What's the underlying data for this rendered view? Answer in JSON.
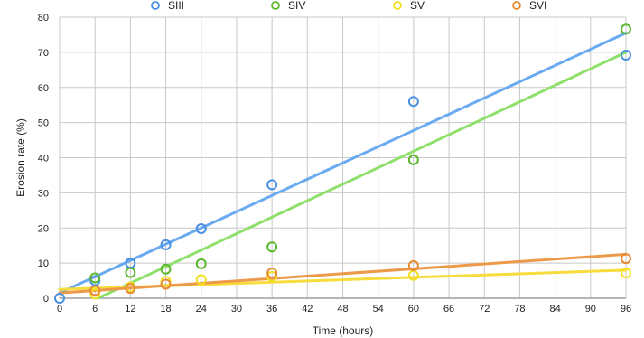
{
  "chart_data": {
    "type": "scatter",
    "xlabel": "Time (hours)",
    "ylabel": "Erosion rate (%)",
    "xlim": [
      0,
      96
    ],
    "ylim": [
      0,
      80
    ],
    "xticks": [
      0,
      6,
      12,
      18,
      24,
      30,
      36,
      42,
      48,
      54,
      60,
      66,
      72,
      78,
      84,
      90,
      96
    ],
    "yticks": [
      0,
      10,
      20,
      30,
      40,
      50,
      60,
      70,
      80
    ],
    "grid": true,
    "legend_position": "top",
    "series": [
      {
        "name": "SIII",
        "color": "#4a90e2",
        "line_color": "#6aaaf0",
        "x": [
          0,
          6,
          12,
          18,
          24,
          36,
          60,
          96
        ],
        "y": [
          0,
          5,
          10,
          15.2,
          19.8,
          32.3,
          56,
          69.2
        ],
        "trendline": [
          [
            0,
            1.5
          ],
          [
            96,
            75.5
          ]
        ]
      },
      {
        "name": "SIV",
        "color": "#5cb82e",
        "line_color": "#8ee06a",
        "x": [
          6,
          12,
          18,
          24,
          36,
          60,
          96
        ],
        "y": [
          5.8,
          7.3,
          8.3,
          9.8,
          14.6,
          39.4,
          76.6
        ],
        "trendline": [
          [
            6.5,
            0
          ],
          [
            96,
            70
          ]
        ]
      },
      {
        "name": "SV",
        "color": "#f2e01e",
        "line_color": "#f6dc3c",
        "x": [
          6,
          12,
          18,
          24,
          36,
          60,
          96
        ],
        "y": [
          1.2,
          3.2,
          4.8,
          5.3,
          6.2,
          6.5,
          7.2
        ],
        "trendline": [
          [
            0,
            2.5
          ],
          [
            96,
            8
          ]
        ]
      },
      {
        "name": "SVI",
        "color": "#e88a35",
        "line_color": "#ec9a4a",
        "x": [
          6,
          12,
          18,
          36,
          60,
          96
        ],
        "y": [
          2.2,
          2.8,
          4,
          7.2,
          9.3,
          11.3
        ],
        "trendline": [
          [
            0,
            1.5
          ],
          [
            96,
            12.5
          ]
        ]
      }
    ]
  }
}
